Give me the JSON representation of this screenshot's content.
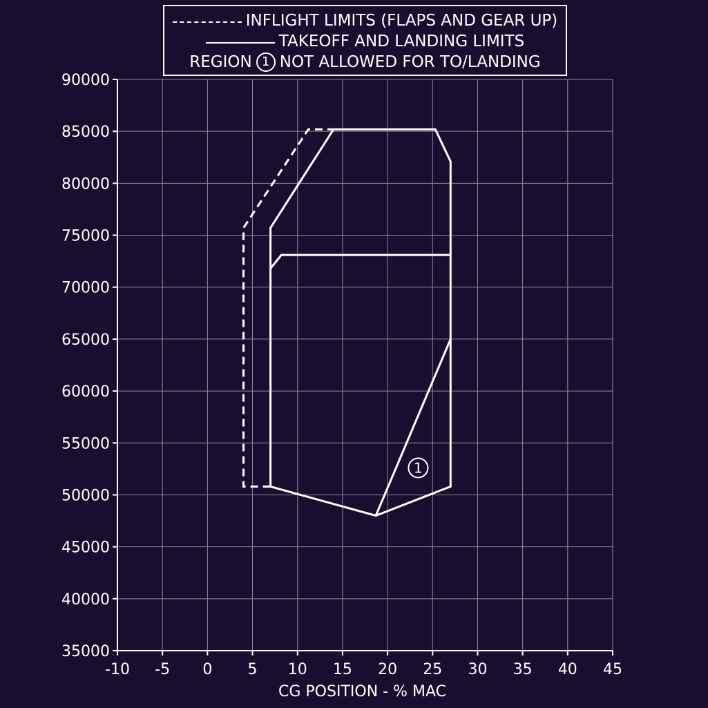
{
  "legend": {
    "inflight_label": "INFLIGHT LIMITS (FLAPS AND GEAR UP)",
    "takeoff_label": "TAKEOFF AND LANDING LIMITS",
    "region_prefix": "REGION",
    "region_number": "1",
    "region_suffix": "NOT ALLOWED FOR TO/LANDING"
  },
  "chart_data": {
    "type": "line",
    "xlabel": "CG POSITION - % MAC",
    "ylabel": "",
    "xlim": [
      -10,
      45
    ],
    "ylim": [
      35000,
      90000
    ],
    "x_ticks": [
      -10,
      -5,
      0,
      5,
      10,
      15,
      20,
      25,
      30,
      35,
      40,
      45
    ],
    "y_ticks": [
      35000,
      40000,
      45000,
      50000,
      55000,
      60000,
      65000,
      70000,
      75000,
      80000,
      85000,
      90000
    ],
    "grid": true,
    "series": [
      {
        "name": "INFLIGHT LIMITS (FLAPS AND GEAR UP)",
        "style": "dashed",
        "points": [
          [
            7,
            50800
          ],
          [
            4,
            50800
          ],
          [
            4,
            75700
          ],
          [
            11.2,
            85200
          ],
          [
            14,
            85200
          ]
        ]
      },
      {
        "name": "TAKEOFF AND LANDING LIMITS",
        "style": "solid",
        "points": [
          [
            7,
            50800
          ],
          [
            7,
            75700
          ],
          [
            14,
            85200
          ],
          [
            25.3,
            85200
          ],
          [
            27,
            82100
          ],
          [
            27,
            50800
          ],
          [
            18.7,
            48000
          ],
          [
            7,
            50800
          ]
        ]
      },
      {
        "name": "",
        "style": "solid",
        "points": [
          [
            7,
            71800
          ],
          [
            8.2,
            73100
          ],
          [
            27,
            73100
          ]
        ]
      },
      {
        "name": "",
        "style": "solid",
        "points": [
          [
            18.7,
            48000
          ],
          [
            27,
            65000
          ]
        ]
      }
    ],
    "annotations": [
      {
        "text": "1",
        "x": 23.4,
        "y": 52600,
        "shape": "circle"
      }
    ]
  },
  "colors": {
    "background": "#1a0e2e",
    "grid": "#8f8aa0",
    "line": "#ffffff",
    "text": "#ffffff"
  }
}
